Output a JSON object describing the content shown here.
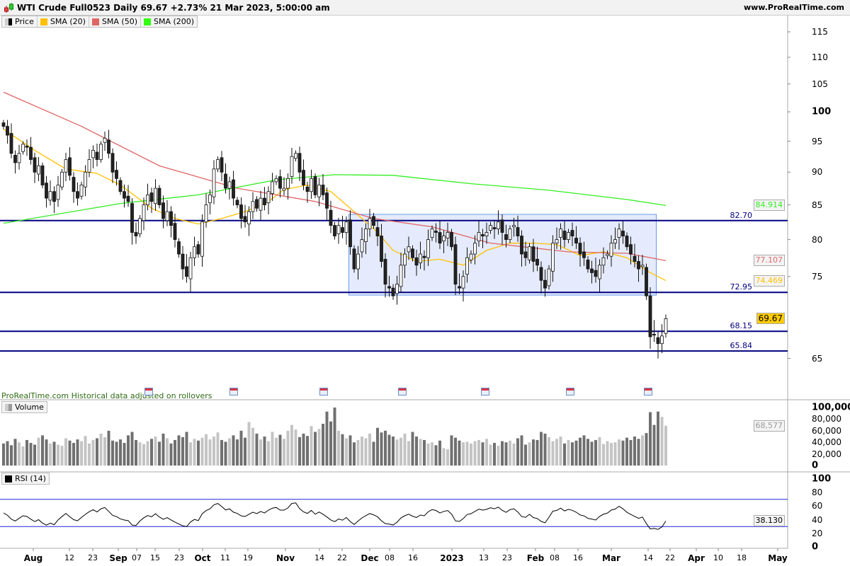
{
  "header": {
    "title": "WTI Crude Full0523 Daily 69.67 +2.73% 21 Mar 2023, 5:00:00 am",
    "site": "www.ProRealTime.com"
  },
  "legend": {
    "price": "Price",
    "sma20": "SMA (20)",
    "sma50": "SMA (50)",
    "sma200": "SMA (200)",
    "volume": "Volume",
    "rsi": "RSI (14)"
  },
  "note": "ProRealTime.com  Historical data adjusted on rollovers",
  "colors": {
    "sma20": "#ffc000",
    "sma50": "#e06666",
    "sma200": "#33ee22",
    "levels": "#000080",
    "box_fill": "#e5ebfc",
    "box_border": "#6699ee",
    "up": "#ffffff",
    "down": "#222222",
    "rsi_bands": "#2222dd"
  },
  "chart_data": [
    {
      "type": "candlestick",
      "scale": "log",
      "ylim": [
        62,
        117
      ],
      "y_ticks": [
        "115",
        "110",
        "105",
        "100",
        "95",
        "90",
        "85",
        "80",
        "75",
        "65"
      ],
      "y_tick_values": [
        115,
        110,
        105,
        100,
        95,
        90,
        85,
        80,
        75,
        65
      ],
      "x_tick_labels": [
        {
          "text": "Aug",
          "bold": true
        },
        {
          "text": "12"
        },
        {
          "text": "23"
        },
        {
          "text": "Sep",
          "bold": true
        },
        {
          "text": "07"
        },
        {
          "text": "15"
        },
        {
          "text": "23"
        },
        {
          "text": "Oct",
          "bold": true
        },
        {
          "text": "11"
        },
        {
          "text": "19"
        },
        {
          "text": "Nov",
          "bold": true
        },
        {
          "text": "14"
        },
        {
          "text": "22"
        },
        {
          "text": "Dec",
          "bold": true
        },
        {
          "text": "08"
        },
        {
          "text": "16"
        },
        {
          "text": "2023",
          "bold": true
        },
        {
          "text": "13"
        },
        {
          "text": "23"
        },
        {
          "text": "Feb",
          "bold": true
        },
        {
          "text": "08"
        },
        {
          "text": "16"
        },
        {
          "text": "Mar",
          "bold": true
        },
        {
          "text": "14"
        },
        {
          "text": "22"
        },
        {
          "text": "Apr",
          "bold": true
        },
        {
          "text": "10"
        },
        {
          "text": "18"
        },
        {
          "text": "May",
          "bold": true
        }
      ],
      "closes": [
        97.5,
        96,
        93,
        91.5,
        93,
        94.5,
        94,
        92,
        90,
        91,
        88,
        86,
        87,
        85.5,
        88,
        90,
        92,
        89.5,
        87,
        86,
        88,
        90,
        92,
        93.5,
        92,
        94.5,
        95.5,
        93,
        90,
        89,
        87,
        86,
        85.5,
        81,
        80.5,
        83,
        85,
        86.5,
        85.5,
        87.5,
        85,
        83,
        84,
        82,
        80,
        78,
        76,
        75,
        77.5,
        79,
        78,
        82.5,
        85,
        86.5,
        90.5,
        92,
        90,
        87.5,
        88.5,
        86,
        85,
        83,
        82.5,
        84,
        85.5,
        84.5,
        86,
        85,
        87,
        88.5,
        89,
        87.5,
        87.5,
        89,
        92.5,
        93,
        90,
        88,
        87,
        89,
        86.5,
        88,
        86.5,
        84.5,
        82,
        80.5,
        82,
        81,
        82.5,
        79,
        76,
        78,
        80,
        81.5,
        83,
        82,
        80.5,
        77,
        74,
        73.5,
        72.5,
        74,
        76.5,
        78,
        79,
        77.5,
        76.5,
        78,
        77.5,
        80,
        81.5,
        81,
        79.5,
        80.5,
        81,
        79,
        74,
        73.5,
        75,
        77.5,
        78,
        79.5,
        81,
        80.5,
        81,
        82,
        81.5,
        82.5,
        81,
        80,
        81.5,
        82,
        80.5,
        78,
        77.5,
        79,
        77,
        76.5,
        74.5,
        73.5,
        76,
        79.5,
        80,
        81.5,
        80,
        81,
        80.5,
        79.5,
        78,
        77.5,
        76,
        75.5,
        75,
        76.5,
        77.5,
        78,
        79.5,
        80,
        81.5,
        80.5,
        79,
        78,
        77,
        76,
        76.5,
        72.5,
        67.5,
        67.7,
        66.7,
        67.6,
        69.67
      ],
      "last_price": "69.67",
      "series": [
        {
          "name": "SMA (20)",
          "last": "74.469",
          "points": [
            [
              0,
              97
            ],
            [
              8,
              93.5
            ],
            [
              16,
              90.5
            ],
            [
              24,
              89.8
            ],
            [
              30,
              88
            ],
            [
              38,
              84.5
            ],
            [
              44,
              83
            ],
            [
              50,
              82.2
            ],
            [
              56,
              83
            ],
            [
              62,
              84
            ],
            [
              68,
              85.5
            ],
            [
              72,
              87.3
            ],
            [
              78,
              88
            ],
            [
              84,
              87
            ],
            [
              90,
              84
            ],
            [
              96,
              81
            ],
            [
              100,
              78.5
            ],
            [
              106,
              77
            ],
            [
              112,
              77.3
            ],
            [
              118,
              76.5
            ],
            [
              124,
              78.5
            ],
            [
              130,
              79.5
            ],
            [
              136,
              79.5
            ],
            [
              142,
              79.3
            ],
            [
              148,
              77.8
            ],
            [
              154,
              78.3
            ],
            [
              160,
              77.5
            ],
            [
              166,
              75.5
            ],
            [
              170,
              74.469
            ]
          ]
        },
        {
          "name": "SMA (50)",
          "last": "77.107",
          "points": [
            [
              0,
              103.5
            ],
            [
              20,
              97.5
            ],
            [
              40,
              91
            ],
            [
              60,
              87.5
            ],
            [
              80,
              85.5
            ],
            [
              95,
              83
            ],
            [
              110,
              81.8
            ],
            [
              125,
              79.5
            ],
            [
              145,
              78.3
            ],
            [
              160,
              78.1
            ],
            [
              170,
              77.107
            ]
          ]
        },
        {
          "name": "SMA (200)",
          "last": "84.914",
          "points": [
            [
              0,
              82.3
            ],
            [
              30,
              85.2
            ],
            [
              50,
              86.5
            ],
            [
              70,
              88.8
            ],
            [
              85,
              89.6
            ],
            [
              100,
              89.5
            ],
            [
              120,
              88.2
            ],
            [
              140,
              87.2
            ],
            [
              160,
              85.8
            ],
            [
              170,
              84.914
            ]
          ]
        }
      ],
      "levels": [
        "82.70",
        "72.95",
        "68.15",
        "65.84"
      ],
      "level_values": [
        82.7,
        72.95,
        68.15,
        65.84
      ],
      "range_box": {
        "from_index": 89,
        "to_index": 167,
        "top": 83.6,
        "bottom": 72.6
      }
    },
    {
      "type": "bar",
      "name": "Volume",
      "ylim": [
        0,
        100000
      ],
      "y_ticks": [
        "100,000",
        "80,000",
        "60,000",
        "40,000",
        "20,000",
        "0"
      ],
      "y_tick_values": [
        100000,
        80000,
        60000,
        40000,
        20000,
        0
      ],
      "last": "68,577",
      "values": [
        38000,
        42000,
        35000,
        46000,
        40000,
        33000,
        44000,
        39000,
        36000,
        48000,
        52000,
        45000,
        38000,
        41000,
        36000,
        34000,
        47000,
        43000,
        39000,
        45000,
        42000,
        51000,
        38000,
        44000,
        47000,
        55000,
        49000,
        60000,
        43000,
        41000,
        45000,
        39000,
        52000,
        58000,
        44000,
        40000,
        37000,
        42000,
        46000,
        50000,
        41000,
        55000,
        47000,
        38000,
        44000,
        52000,
        49000,
        58000,
        40000,
        46000,
        43000,
        48000,
        54000,
        45000,
        50000,
        57000,
        44000,
        41000,
        47000,
        52000,
        45000,
        60000,
        48000,
        75000,
        65000,
        55000,
        45000,
        50000,
        42000,
        58000,
        48000,
        53000,
        46000,
        60000,
        70000,
        62000,
        49000,
        55000,
        51000,
        68000,
        58000,
        63000,
        72000,
        93000,
        76000,
        100000,
        60000,
        54000,
        47000,
        52000,
        40000,
        44000,
        50000,
        47000,
        55000,
        41000,
        65000,
        57000,
        60000,
        53000,
        50000,
        45000,
        48000,
        55000,
        42000,
        58000,
        50000,
        46000,
        44000,
        38000,
        40000,
        35000,
        43000,
        30000,
        28000,
        52000,
        48000,
        43000,
        40000,
        41000,
        38000,
        42000,
        44000,
        40000,
        46000,
        36000,
        39000,
        34000,
        42000,
        40000,
        43000,
        38000,
        47000,
        52000,
        36000,
        40000,
        45000,
        44000,
        58000,
        55000,
        49000,
        42000,
        46000,
        50000,
        38000,
        44000,
        40000,
        43000,
        48000,
        52000,
        46000,
        41000,
        44000,
        49000,
        37000,
        42000,
        39000,
        40000,
        45000,
        43000,
        48000,
        44000,
        50000,
        46000,
        52000,
        56000,
        92000,
        70000,
        93000,
        84000,
        68577
      ]
    },
    {
      "type": "line",
      "name": "RSI (14)",
      "ylim": [
        0,
        100
      ],
      "y_ticks": [
        "100",
        "80",
        "60",
        "40",
        "20",
        "0"
      ],
      "y_tick_values": [
        100,
        80,
        60,
        40,
        20,
        0
      ],
      "bands": [
        70,
        30
      ],
      "last": "38.130"
    }
  ]
}
